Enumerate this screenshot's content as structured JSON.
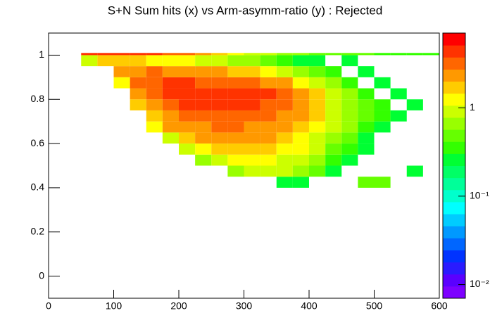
{
  "chart_data": {
    "type": "heatmap",
    "title": "S+N Sum hits (x) vs Arm-asymm-ratio (y) : Rejected",
    "xbins": [
      0,
      25,
      50,
      75,
      100,
      125,
      150,
      175,
      200,
      225,
      250,
      275,
      300,
      325,
      350,
      375,
      400,
      425,
      450,
      475,
      500,
      525,
      550,
      575,
      600
    ],
    "ybins": [
      0.4,
      0.45,
      0.5,
      0.55,
      0.6,
      0.65,
      0.7,
      0.75,
      0.8,
      0.85,
      0.9,
      0.95,
      1.0,
      1.01
    ],
    "z": [
      [
        null,
        null,
        null,
        null,
        null,
        null,
        null,
        null,
        null,
        null,
        null,
        null,
        null,
        null,
        0.3,
        0.3,
        null,
        null,
        null,
        0.5,
        0.5,
        null,
        null,
        null
      ],
      [
        null,
        null,
        null,
        null,
        null,
        null,
        null,
        null,
        null,
        null,
        null,
        0.6,
        0.8,
        0.9,
        0.8,
        0.7,
        0.5,
        0.3,
        null,
        null,
        null,
        null,
        0.3,
        null
      ],
      [
        null,
        null,
        null,
        null,
        null,
        null,
        null,
        null,
        null,
        0.6,
        1,
        1.2,
        1.3,
        1.2,
        1,
        0.8,
        0.6,
        0.4,
        0.3,
        null,
        null,
        null,
        null,
        null
      ],
      [
        null,
        null,
        null,
        null,
        null,
        null,
        null,
        null,
        0.8,
        1.3,
        1.6,
        1.8,
        1.8,
        1.6,
        1.4,
        1.1,
        0.8,
        0.5,
        0.4,
        0.3,
        null,
        null,
        null,
        null
      ],
      [
        null,
        null,
        null,
        null,
        null,
        null,
        null,
        1,
        1.6,
        2,
        2.2,
        2.3,
        2.2,
        2,
        1.6,
        1.3,
        1,
        0.7,
        0.5,
        0.3,
        null,
        null,
        null,
        null
      ],
      [
        null,
        null,
        null,
        null,
        null,
        null,
        1.2,
        2,
        2.4,
        2.6,
        2.8,
        2.8,
        2.6,
        2.3,
        2,
        1.6,
        1.2,
        0.8,
        0.6,
        0.4,
        0.3,
        null,
        null,
        null
      ],
      [
        null,
        null,
        null,
        null,
        null,
        null,
        1.8,
        2.6,
        3,
        3.2,
        3.4,
        3.4,
        3.2,
        2.8,
        2.4,
        2,
        1.5,
        1,
        0.7,
        0.5,
        0.4,
        0.3,
        null,
        null
      ],
      [
        null,
        null,
        null,
        null,
        null,
        1.5,
        2.6,
        3.4,
        3.8,
        4,
        4,
        4.2,
        4,
        3.5,
        3,
        2.3,
        1.6,
        1,
        0.7,
        0.5,
        0.4,
        null,
        0.3,
        null
      ],
      [
        null,
        null,
        null,
        null,
        null,
        2.2,
        3.2,
        4,
        4.2,
        4,
        4.2,
        4.4,
        4.2,
        3.8,
        3,
        2.2,
        1.5,
        1,
        0.6,
        0.4,
        null,
        0.3,
        null,
        null
      ],
      [
        null,
        null,
        null,
        null,
        1.4,
        2.8,
        3.6,
        4,
        3.8,
        3.6,
        3.6,
        3.4,
        3,
        2.6,
        2,
        1.4,
        1,
        0.6,
        0.4,
        null,
        0.3,
        null,
        null,
        null
      ],
      [
        null,
        null,
        null,
        null,
        2,
        2.6,
        2.8,
        2.6,
        2.4,
        2.2,
        2,
        1.8,
        1.5,
        1.2,
        1,
        0.7,
        0.5,
        0.4,
        null,
        0.3,
        null,
        null,
        null,
        null
      ],
      [
        null,
        null,
        1,
        1.6,
        1.6,
        1.5,
        1.4,
        1.2,
        1.1,
        1,
        0.8,
        0.7,
        0.6,
        0.5,
        0.4,
        0.3,
        0.3,
        null,
        0.3,
        null,
        null,
        null,
        null,
        null
      ],
      [
        null,
        null,
        5,
        5,
        4.5,
        4,
        4,
        3.5,
        3,
        2,
        1.5,
        1.2,
        1,
        0.8,
        0.6,
        0.6,
        0.5,
        0.5,
        0.5,
        0.5,
        0.4,
        0.4,
        0.4,
        0.4
      ]
    ],
    "xlim": [
      0,
      600
    ],
    "xticks": [
      0,
      100,
      200,
      300,
      400,
      500,
      600
    ],
    "ylim": [
      -0.1,
      1.1
    ],
    "yticks": [
      0,
      0.2,
      0.4,
      0.6,
      0.8,
      1
    ],
    "zlim": [
      0.007,
      7
    ],
    "zlog": true,
    "zticks": [
      {
        "value": 0.01,
        "label": "10⁻²"
      },
      {
        "value": 0.1,
        "label": "10⁻¹"
      },
      {
        "value": 1,
        "label": "1"
      }
    ],
    "palette": [
      "#7d00ff",
      "#5a00ff",
      "#2a1bff",
      "#0033ff",
      "#0066ff",
      "#0099ff",
      "#00ccff",
      "#00ffff",
      "#00ffcc",
      "#00ff99",
      "#00ff66",
      "#00ff33",
      "#33ff00",
      "#66ff00",
      "#99ff00",
      "#ccff00",
      "#ffff00",
      "#ffcc00",
      "#ff9900",
      "#ff6600",
      "#ff3300",
      "#ff0000"
    ]
  }
}
